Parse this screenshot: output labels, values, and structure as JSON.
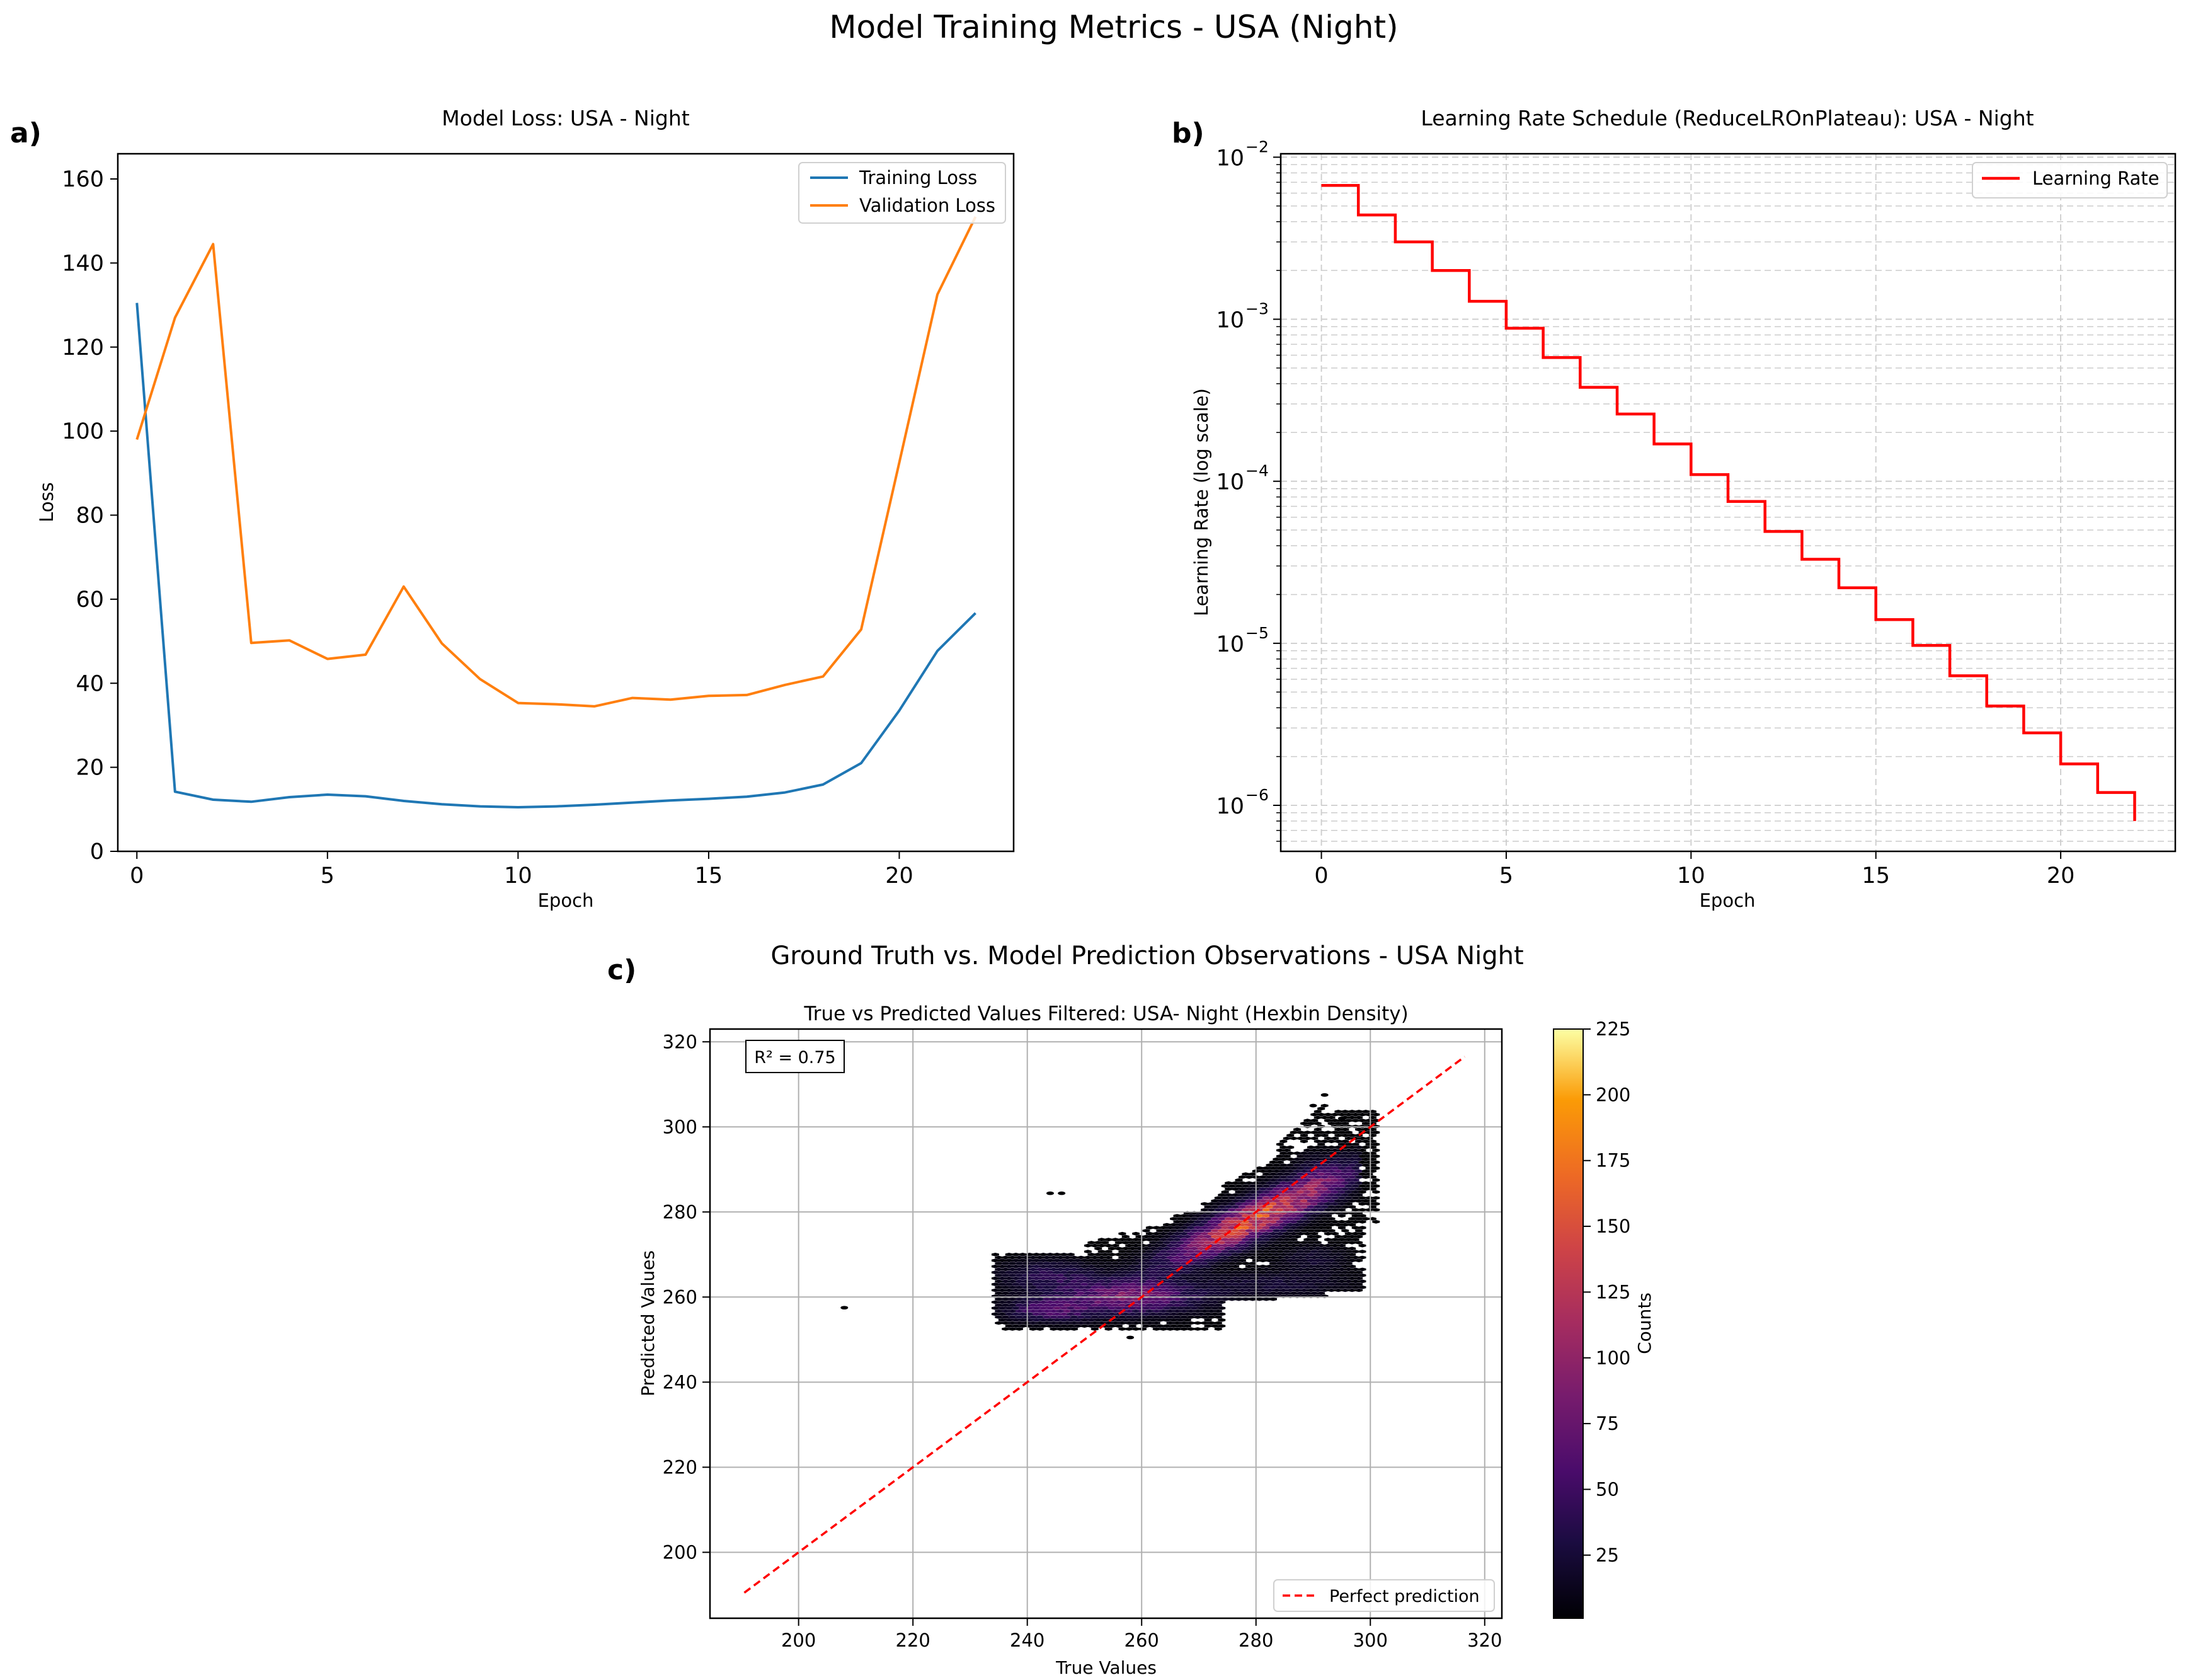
{
  "figure": {
    "title": "Model Training Metrics - USA (Night)",
    "panel_c_heading": "Ground Truth vs. Model Prediction Observations - USA Night"
  },
  "chart_data": [
    {
      "panel": "a)",
      "type": "line",
      "title": "Model Loss: USA - Night",
      "xlabel": "Epoch",
      "ylabel": "Loss",
      "xlim": [
        -0.5,
        23
      ],
      "ylim": [
        0,
        166
      ],
      "xticks": [
        0,
        5,
        10,
        15,
        20
      ],
      "yticks": [
        0,
        20,
        40,
        60,
        80,
        100,
        120,
        140,
        160
      ],
      "grid": false,
      "legend": "top-right",
      "x": [
        0,
        1,
        2,
        3,
        4,
        5,
        6,
        7,
        8,
        9,
        10,
        11,
        12,
        13,
        14,
        15,
        16,
        17,
        18,
        19,
        20,
        21,
        22
      ],
      "series": [
        {
          "name": "Training Loss",
          "color": "#1f77b4",
          "values": [
            130.5,
            14.2,
            12.3,
            11.8,
            12.9,
            13.5,
            13.1,
            12.0,
            11.2,
            10.7,
            10.5,
            10.7,
            11.1,
            11.6,
            12.1,
            12.5,
            13.0,
            14.0,
            15.9,
            21.0,
            33.5,
            47.7,
            56.7
          ]
        },
        {
          "name": "Validation Loss",
          "color": "#ff7f0e",
          "values": [
            98,
            127,
            144.5,
            49.6,
            50.2,
            45.8,
            46.8,
            63,
            49.5,
            41,
            35.3,
            35,
            34.5,
            36.5,
            36.1,
            37,
            37.2,
            39.6,
            41.6,
            52.8,
            92.5,
            132.5,
            151
          ]
        }
      ]
    },
    {
      "panel": "b)",
      "type": "line",
      "title": "Learning Rate Schedule (ReduceLROnPlateau): USA - Night",
      "xlabel": "Epoch",
      "ylabel": "Learning Rate (log scale)",
      "yscale": "log",
      "xlim": [
        -1.1,
        23.1
      ],
      "ylim": [
        5.2e-07,
        0.0105
      ],
      "xticks": [
        0,
        5,
        10,
        15,
        20
      ],
      "yticks": [
        {
          "value": 0.01,
          "base": "10",
          "exp": "−2"
        },
        {
          "value": 0.001,
          "base": "10",
          "exp": "−3"
        },
        {
          "value": 0.0001,
          "base": "10",
          "exp": "−4"
        },
        {
          "value": 1e-05,
          "base": "10",
          "exp": "−5"
        },
        {
          "value": 1e-06,
          "base": "10",
          "exp": "−6"
        }
      ],
      "grid": true,
      "legend": "top-right",
      "drawstyle": "steps-post",
      "x": [
        0,
        1,
        2,
        3,
        4,
        5,
        6,
        7,
        8,
        9,
        10,
        11,
        12,
        13,
        14,
        15,
        16,
        17,
        18,
        19,
        20,
        21,
        22
      ],
      "series": [
        {
          "name": "Learning Rate",
          "color": "#ff0000",
          "values": [
            0.0067,
            0.0044,
            0.003,
            0.002,
            0.00129,
            0.00088,
            0.00058,
            0.00038,
            0.00026,
            0.00017,
            0.00011,
            7.5e-05,
            4.9e-05,
            3.3e-05,
            2.2e-05,
            1.4e-05,
            9.7e-06,
            6.3e-06,
            4.1e-06,
            2.8e-06,
            1.8e-06,
            1.2e-06,
            8e-07
          ]
        }
      ]
    },
    {
      "panel": "c)",
      "type": "heatmap",
      "subtype": "hexbin",
      "title": "True vs Predicted Values Filtered: USA- Night (Hexbin Density)",
      "xlabel": "True Values",
      "ylabel": "Predicted Values",
      "xlim": [
        184.5,
        323
      ],
      "ylim": [
        184.5,
        323
      ],
      "xticks": [
        200,
        220,
        240,
        260,
        280,
        300,
        320
      ],
      "yticks": [
        200,
        220,
        240,
        260,
        280,
        300,
        320
      ],
      "grid": true,
      "annotation": "R² = 0.75",
      "colormap": "inferno",
      "colorbar": {
        "label": "Counts",
        "min": 1,
        "max": 225,
        "ticks": [
          25,
          50,
          75,
          100,
          125,
          150,
          175,
          200,
          225
        ]
      },
      "reference_line": {
        "name": "Perfect prediction",
        "color": "#ff0000",
        "style": "dashed",
        "x": [
          190.5,
          316.5
        ],
        "y": [
          190.5,
          316.5
        ]
      },
      "legend": "bottom-right",
      "density_clusters": [
        {
          "x": 282,
          "y": 279,
          "peak": 225
        },
        {
          "x": 270,
          "y": 270,
          "peak": 170
        },
        {
          "x": 258,
          "y": 261,
          "peak": 110
        },
        {
          "x": 245,
          "y": 257,
          "peak": 70
        },
        {
          "x": 290,
          "y": 287,
          "peak": 90
        },
        {
          "x": 275,
          "y": 263,
          "peak": 30
        },
        {
          "x": 290,
          "y": 265,
          "peak": 25
        }
      ]
    }
  ]
}
